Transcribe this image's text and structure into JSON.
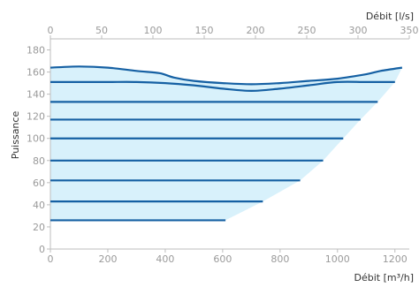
{
  "chart_data": {
    "type": "area",
    "ylabel": "Puissance",
    "xlabel_bottom": "Débit [m³/h]",
    "xlabel_top": "Débit [l/s]",
    "xlim_bottom": [
      0,
      1250
    ],
    "xlim_top": [
      0,
      350
    ],
    "ylim": [
      0,
      190
    ],
    "x_ticks_bottom": [
      0,
      200,
      400,
      600,
      800,
      1000,
      1200
    ],
    "x_ticks_top": [
      0,
      50,
      100,
      150,
      200,
      250,
      300,
      350
    ],
    "y_ticks": [
      0,
      20,
      40,
      60,
      80,
      100,
      120,
      140,
      160,
      180
    ],
    "grid": false,
    "area_boundary": [
      [
        0,
        164
      ],
      [
        100,
        165
      ],
      [
        200,
        164
      ],
      [
        300,
        161
      ],
      [
        380,
        159
      ],
      [
        430,
        155
      ],
      [
        500,
        152
      ],
      [
        600,
        150
      ],
      [
        700,
        149
      ],
      [
        800,
        150
      ],
      [
        900,
        152
      ],
      [
        1000,
        154
      ],
      [
        1100,
        158
      ],
      [
        1150,
        161
      ],
      [
        1225,
        164
      ],
      [
        1200,
        151
      ],
      [
        1140,
        133
      ],
      [
        1080,
        117
      ],
      [
        1020,
        100
      ],
      [
        950,
        80
      ],
      [
        870,
        62
      ],
      [
        740,
        43
      ],
      [
        610,
        26
      ],
      [
        0,
        26
      ]
    ],
    "curves": [
      {
        "points": [
          [
            0,
            164
          ],
          [
            100,
            165
          ],
          [
            200,
            164
          ],
          [
            300,
            161
          ],
          [
            380,
            159
          ],
          [
            430,
            155
          ],
          [
            500,
            152
          ],
          [
            600,
            150
          ],
          [
            700,
            149
          ],
          [
            800,
            150
          ],
          [
            900,
            152
          ],
          [
            1000,
            154
          ],
          [
            1100,
            158
          ],
          [
            1150,
            161
          ],
          [
            1225,
            164
          ]
        ]
      },
      {
        "points": [
          [
            0,
            151
          ],
          [
            100,
            151
          ],
          [
            200,
            151
          ],
          [
            300,
            151
          ],
          [
            400,
            150
          ],
          [
            500,
            148
          ],
          [
            600,
            145
          ],
          [
            700,
            143
          ],
          [
            800,
            145
          ],
          [
            900,
            148
          ],
          [
            1000,
            151
          ],
          [
            1100,
            151
          ],
          [
            1200,
            151
          ]
        ]
      }
    ],
    "levels": [
      {
        "y": 133,
        "x_end": 1140
      },
      {
        "y": 117,
        "x_end": 1080
      },
      {
        "y": 100,
        "x_end": 1020
      },
      {
        "y": 80,
        "x_end": 950
      },
      {
        "y": 62,
        "x_end": 870
      },
      {
        "y": 43,
        "x_end": 740
      },
      {
        "y": 26,
        "x_end": 610
      }
    ],
    "colors": {
      "line": "#1560a3",
      "fill": "#d8f1fb",
      "axis": "#bdbdbd",
      "tick_text": "#9a9a9a"
    }
  }
}
